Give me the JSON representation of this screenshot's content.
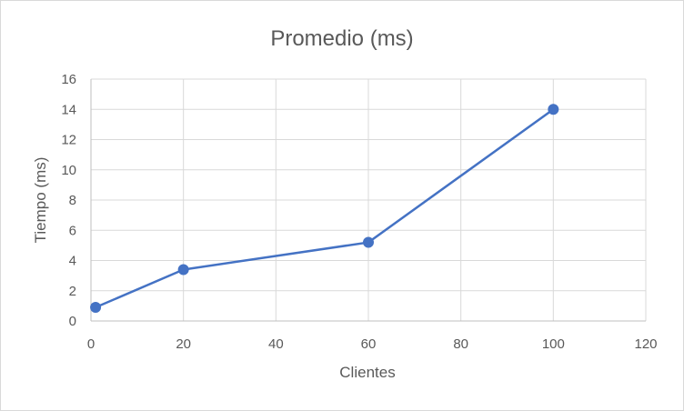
{
  "chart_data": {
    "type": "scatter",
    "title": "Promedio (ms)",
    "xlabel": "Clientes",
    "ylabel": "Tiempo (ms)",
    "xlim": [
      0,
      120
    ],
    "ylim": [
      0,
      16
    ],
    "xticks": [
      0,
      20,
      40,
      60,
      80,
      100,
      120
    ],
    "yticks": [
      0,
      2,
      4,
      6,
      8,
      10,
      12,
      14,
      16
    ],
    "grid": true,
    "legend": "none",
    "series": [
      {
        "color": "#4472c4",
        "points": [
          {
            "x": 1,
            "y": 0.9
          },
          {
            "x": 20,
            "y": 3.4
          },
          {
            "x": 60,
            "y": 5.2
          },
          {
            "x": 100,
            "y": 14.0
          }
        ]
      }
    ]
  }
}
